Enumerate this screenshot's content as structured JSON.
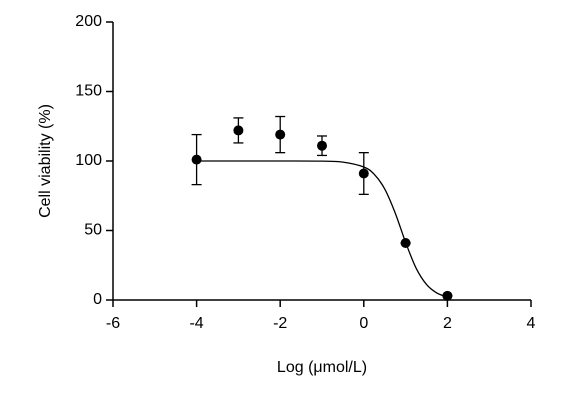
{
  "chart_data": {
    "type": "scatter",
    "x_label": "Log (μmol/L)",
    "y_label": "Cell viability (%)",
    "x": [
      -4,
      -3,
      -2,
      -1,
      0,
      1,
      2
    ],
    "series": [
      {
        "values": [
          101,
          122,
          119,
          111,
          91,
          41,
          3
        ],
        "errors": [
          18,
          9,
          13,
          7,
          15,
          0,
          0
        ],
        "color": "#000000"
      }
    ],
    "fit": {
      "x": [
        -4,
        -2,
        -1,
        -0.5,
        0,
        0.25,
        0.5,
        0.75,
        1,
        1.25,
        1.5,
        1.75,
        2
      ],
      "values": [
        100,
        100,
        99.9,
        99.2,
        95.7,
        90.4,
        79.9,
        62.7,
        41.5,
        23.0,
        11.2,
        5.0,
        2.2
      ],
      "color": "#000000"
    },
    "xlim": [
      -6,
      4
    ],
    "xticks": [
      -6,
      -4,
      -2,
      0,
      2,
      4
    ],
    "ylim": [
      0,
      200
    ],
    "yticks": [
      0,
      50,
      100,
      150,
      200
    ],
    "grid": false
  }
}
